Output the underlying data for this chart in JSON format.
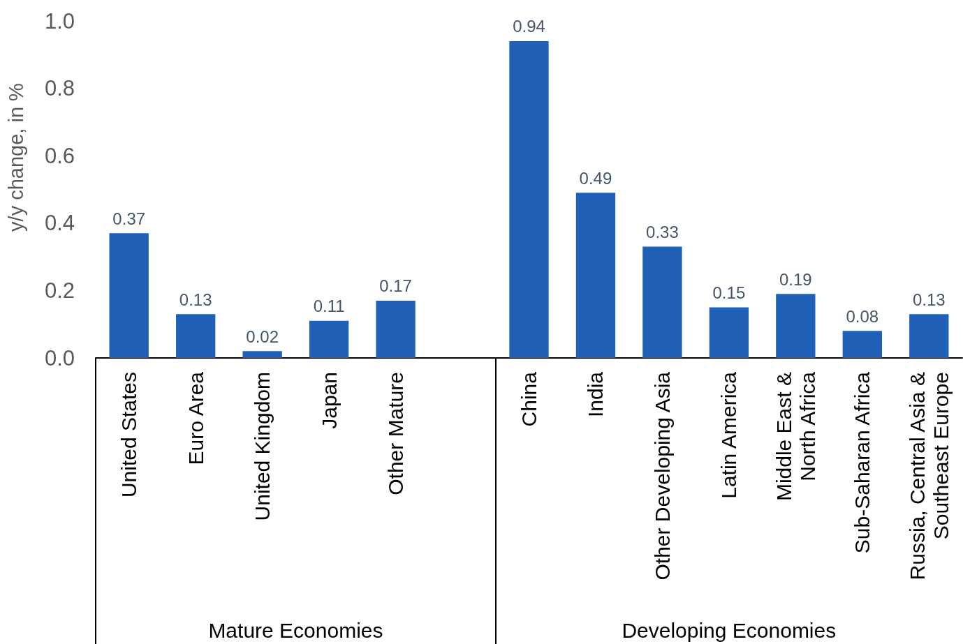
{
  "chart_data": {
    "type": "bar",
    "categories": [
      "United States",
      "Euro Area",
      "United Kingdom",
      "Japan",
      "Other Mature",
      null,
      "China",
      "India",
      "Other Developing Asia",
      "Latin America",
      "Middle East &\nNorth Africa",
      "Sub-Saharan Africa",
      "Russia, Central Asia &\nSoutheast Europe"
    ],
    "values": [
      0.37,
      0.13,
      0.02,
      0.11,
      0.17,
      null,
      0.94,
      0.49,
      0.33,
      0.15,
      0.19,
      0.08,
      0.13
    ],
    "color": "#2060b7",
    "ylabel": "y/y change, in %",
    "ylim": [
      0,
      1
    ],
    "yticks": [
      {
        "value": 0,
        "label": "0.0"
      },
      0.2,
      0.4,
      0.6,
      0.8,
      {
        "value": 1,
        "label": "1.0"
      }
    ],
    "grid": false,
    "data_labels": true,
    "annotations": [
      "Mature Economies",
      "Developing Economies"
    ]
  }
}
